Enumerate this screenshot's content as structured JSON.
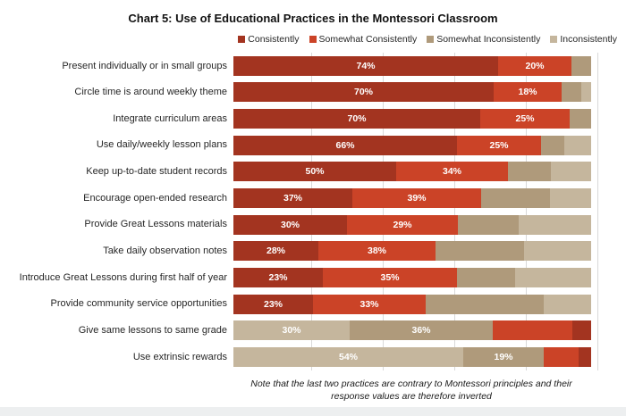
{
  "chart_data": {
    "type": "bar",
    "orientation": "horizontal",
    "stacked": true,
    "normalized_to_100": true,
    "title": "Chart 5: Use of Educational Practices in the Montessori Classroom",
    "legend_position": "top-right",
    "xaxis": {
      "min": 0,
      "max": 100,
      "gridline_interval_pct": 20,
      "grid": true
    },
    "series": [
      {
        "key": "consistently",
        "label": "Consistently"
      },
      {
        "key": "somewhat_consistently",
        "label": "Somewhat Consistently"
      },
      {
        "key": "somewhat_inconsistently",
        "label": "Somewhat Inconsistently"
      },
      {
        "key": "inconsistently",
        "label": "Inconsistently"
      }
    ],
    "colors": {
      "consistently": "#a33420",
      "somewhat_consistently": "#cb4327",
      "somewhat_inconsistently": "#af9a7b",
      "inconsistently": "#c5b69d"
    },
    "rows": [
      {
        "category": "Present individually or in small groups",
        "segments": [
          {
            "series": "consistently",
            "value": 74,
            "label": "74%",
            "width_pct": 74
          },
          {
            "series": "somewhat_consistently",
            "value": 20,
            "label": "20%",
            "width_pct": 20.5
          },
          {
            "series": "somewhat_inconsistently",
            "value": null,
            "label": "",
            "width_pct": 5.5
          },
          {
            "series": "inconsistently",
            "value": null,
            "label": "",
            "width_pct": 0
          }
        ]
      },
      {
        "category": "Circle time is around weekly theme",
        "segments": [
          {
            "series": "consistently",
            "value": 70,
            "label": "70%",
            "width_pct": 72.75
          },
          {
            "series": "somewhat_consistently",
            "value": 18,
            "label": "18%",
            "width_pct": 19
          },
          {
            "series": "somewhat_inconsistently",
            "value": null,
            "label": "",
            "width_pct": 5.5
          },
          {
            "series": "inconsistently",
            "value": null,
            "label": "",
            "width_pct": 2.75
          }
        ]
      },
      {
        "category": "Integrate curriculum areas",
        "segments": [
          {
            "series": "consistently",
            "value": 70,
            "label": "70%",
            "width_pct": 69
          },
          {
            "series": "somewhat_consistently",
            "value": 25,
            "label": "25%",
            "width_pct": 25
          },
          {
            "series": "somewhat_inconsistently",
            "value": null,
            "label": "",
            "width_pct": 6
          },
          {
            "series": "inconsistently",
            "value": null,
            "label": "",
            "width_pct": 0
          }
        ]
      },
      {
        "category": "Use daily/weekly lesson plans",
        "segments": [
          {
            "series": "consistently",
            "value": 66,
            "label": "66%",
            "width_pct": 62.5
          },
          {
            "series": "somewhat_consistently",
            "value": 25,
            "label": "25%",
            "width_pct": 23.5
          },
          {
            "series": "somewhat_inconsistently",
            "value": null,
            "label": "",
            "width_pct": 6.5
          },
          {
            "series": "inconsistently",
            "value": null,
            "label": "",
            "width_pct": 7.5
          }
        ]
      },
      {
        "category": "Keep up-to-date student records",
        "segments": [
          {
            "series": "consistently",
            "value": 50,
            "label": "50%",
            "width_pct": 45.5
          },
          {
            "series": "somewhat_consistently",
            "value": 34,
            "label": "34%",
            "width_pct": 31.25
          },
          {
            "series": "somewhat_inconsistently",
            "value": null,
            "label": "",
            "width_pct": 12
          },
          {
            "series": "inconsistently",
            "value": null,
            "label": "",
            "width_pct": 11.25
          }
        ]
      },
      {
        "category": "Encourage open-ended research",
        "segments": [
          {
            "series": "consistently",
            "value": 37,
            "label": "37%",
            "width_pct": 33.25
          },
          {
            "series": "somewhat_consistently",
            "value": 39,
            "label": "39%",
            "width_pct": 36
          },
          {
            "series": "somewhat_inconsistently",
            "value": null,
            "label": "",
            "width_pct": 19.25
          },
          {
            "series": "inconsistently",
            "value": null,
            "label": "",
            "width_pct": 11.5
          }
        ]
      },
      {
        "category": "Provide Great Lessons materials",
        "segments": [
          {
            "series": "consistently",
            "value": 30,
            "label": "30%",
            "width_pct": 31.75
          },
          {
            "series": "somewhat_consistently",
            "value": 29,
            "label": "29%",
            "width_pct": 31
          },
          {
            "series": "somewhat_inconsistently",
            "value": null,
            "label": "",
            "width_pct": 17
          },
          {
            "series": "inconsistently",
            "value": null,
            "label": "",
            "width_pct": 20.25
          }
        ]
      },
      {
        "category": "Take daily observation notes",
        "segments": [
          {
            "series": "consistently",
            "value": 28,
            "label": "28%",
            "width_pct": 23.75
          },
          {
            "series": "somewhat_consistently",
            "value": 38,
            "label": "38%",
            "width_pct": 32.75
          },
          {
            "series": "somewhat_inconsistently",
            "value": null,
            "label": "",
            "width_pct": 24.75
          },
          {
            "series": "inconsistently",
            "value": null,
            "label": "",
            "width_pct": 18.75
          }
        ]
      },
      {
        "category": "Introduce Great Lessons during first half of year",
        "segments": [
          {
            "series": "consistently",
            "value": 23,
            "label": "23%",
            "width_pct": 25
          },
          {
            "series": "somewhat_consistently",
            "value": 35,
            "label": "35%",
            "width_pct": 37.5
          },
          {
            "series": "somewhat_inconsistently",
            "value": null,
            "label": "",
            "width_pct": 16.25
          },
          {
            "series": "inconsistently",
            "value": null,
            "label": "",
            "width_pct": 21.25
          }
        ]
      },
      {
        "category": "Provide community service opportunities",
        "segments": [
          {
            "series": "consistently",
            "value": 23,
            "label": "23%",
            "width_pct": 22.25
          },
          {
            "series": "somewhat_consistently",
            "value": 33,
            "label": "33%",
            "width_pct": 31.5
          },
          {
            "series": "somewhat_inconsistently",
            "value": null,
            "label": "",
            "width_pct": 33
          },
          {
            "series": "inconsistently",
            "value": null,
            "label": "",
            "width_pct": 13.25
          }
        ]
      },
      {
        "category": "Give same lessons to same grade",
        "inverted": true,
        "segments": [
          {
            "series": "inconsistently",
            "value": 30,
            "label": "30%",
            "width_pct": 32.5
          },
          {
            "series": "somewhat_inconsistently",
            "value": 36,
            "label": "36%",
            "width_pct": 40
          },
          {
            "series": "somewhat_consistently",
            "value": null,
            "label": "",
            "width_pct": 22.25
          },
          {
            "series": "consistently",
            "value": null,
            "label": "",
            "width_pct": 5.25
          }
        ]
      },
      {
        "category": "Use extrinsic rewards",
        "inverted": true,
        "segments": [
          {
            "series": "inconsistently",
            "value": 54,
            "label": "54%",
            "width_pct": 64.25
          },
          {
            "series": "somewhat_inconsistently",
            "value": 19,
            "label": "19%",
            "width_pct": 22.5
          },
          {
            "series": "somewhat_consistently",
            "value": null,
            "label": "",
            "width_pct": 9.75
          },
          {
            "series": "consistently",
            "value": null,
            "label": "",
            "width_pct": 3.5
          }
        ]
      }
    ],
    "note_line1": "Note that the last two practices are contrary to Montessori principles and their",
    "note_line2": "response values are therefore inverted"
  }
}
